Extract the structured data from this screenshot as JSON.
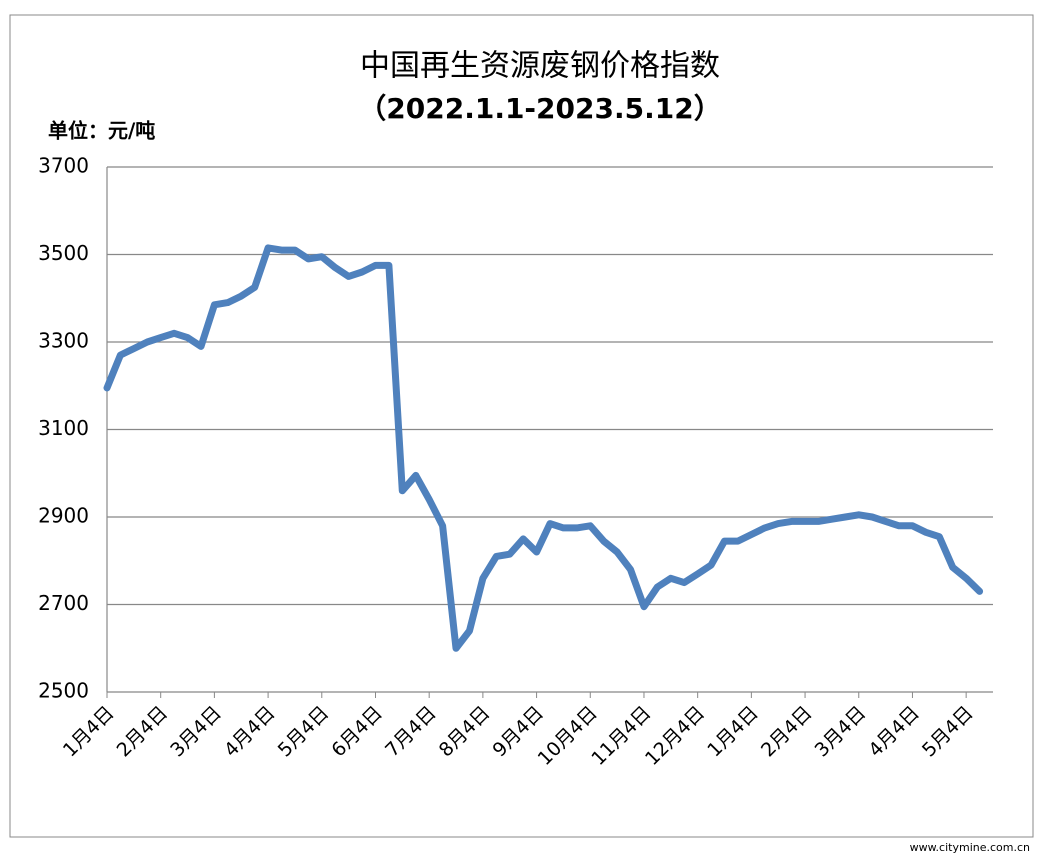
{
  "chart_data": {
    "type": "line",
    "title": "中国再生资源废钢价格指数",
    "subtitle": "（2022.1.1-2023.5.12）",
    "y_label": "单位：元/吨",
    "watermark": "www.citymine.com.cn",
    "categories": [
      "1月4日",
      null,
      null,
      null,
      "2月4日",
      null,
      null,
      null,
      "3月4日",
      null,
      null,
      null,
      "4月4日",
      null,
      null,
      null,
      "5月4日",
      null,
      null,
      null,
      "6月4日",
      null,
      null,
      null,
      "7月4日",
      null,
      null,
      null,
      "8月4日",
      null,
      null,
      null,
      "9月4日",
      null,
      null,
      null,
      "10月4日",
      null,
      null,
      null,
      "11月4日",
      null,
      null,
      null,
      "12月4日",
      null,
      null,
      null,
      "1月4日",
      null,
      null,
      null,
      "2月4日",
      null,
      null,
      null,
      "3月4日",
      null,
      null,
      null,
      "4月4日",
      null,
      null,
      null,
      "5月4日",
      null
    ],
    "series": [
      {
        "name": "废钢价格指数",
        "color": "#4f81bd",
        "values": [
          3195,
          3270,
          3285,
          3300,
          3310,
          3320,
          3310,
          3290,
          3385,
          3390,
          3405,
          3425,
          3515,
          3510,
          3510,
          3490,
          3495,
          3470,
          3450,
          3460,
          3475,
          3475,
          2960,
          2995,
          2940,
          2880,
          2600,
          2640,
          2760,
          2810,
          2815,
          2850,
          2820,
          2885,
          2875,
          2875,
          2880,
          2845,
          2820,
          2780,
          2695,
          2740,
          2760,
          2750,
          2770,
          2790,
          2845,
          2845,
          2860,
          2875,
          2885,
          2890,
          2890,
          2890,
          2895,
          2900,
          2905,
          2900,
          2890,
          2880,
          2880,
          2865,
          2855,
          2785,
          2760,
          2730
        ]
      }
    ],
    "ylim": [
      2500,
      3700
    ],
    "yticks": [
      2500,
      2700,
      2900,
      3100,
      3300,
      3500,
      3700
    ],
    "grid": true
  }
}
